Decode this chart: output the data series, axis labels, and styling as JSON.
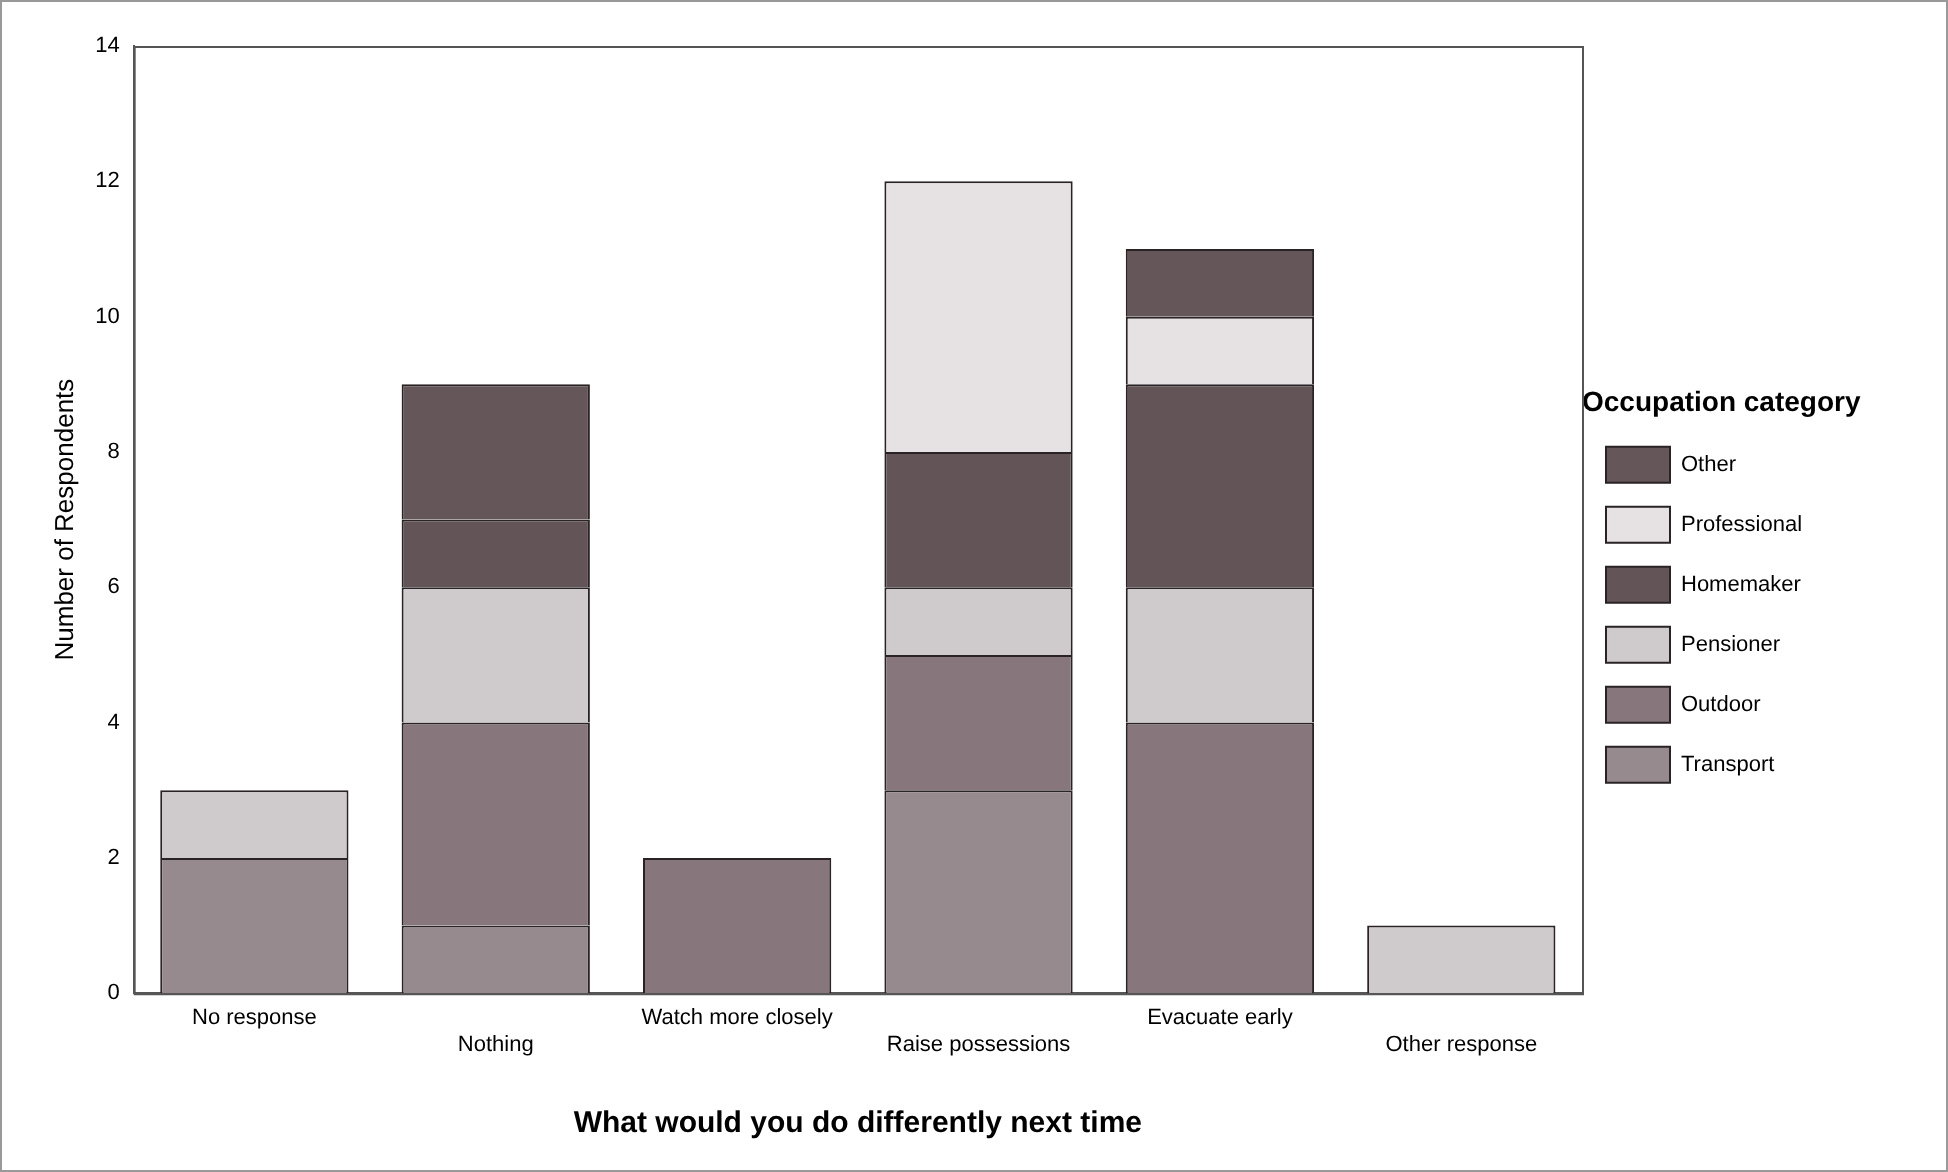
{
  "chart_data": {
    "type": "bar",
    "stacked": true,
    "xlabel": "What would you do differently next time",
    "ylabel": "Number of Respondents",
    "legend_title": "Occupation category",
    "legend": "right",
    "categories": [
      "No response",
      "Nothing",
      "Watch more closely",
      "Raise possessions",
      "Evacuate early",
      "Other response"
    ],
    "ylim": [
      0,
      14
    ],
    "yticks": [
      0,
      2,
      4,
      6,
      8,
      10,
      12,
      14
    ],
    "grid": false,
    "series": [
      {
        "name": "Transport",
        "color": "#978a8f",
        "values": [
          2,
          1,
          0,
          3,
          0,
          0
        ]
      },
      {
        "name": "Outdoor",
        "color": "#87777d",
        "values": [
          0,
          3,
          2,
          2,
          4,
          0
        ]
      },
      {
        "name": "Pensioner",
        "color": "#cfcacc",
        "values": [
          1,
          2,
          0,
          1,
          2,
          1
        ]
      },
      {
        "name": "Homemaker",
        "color": "#625457",
        "values": [
          0,
          1,
          0,
          2,
          3,
          0
        ]
      },
      {
        "name": "Professional",
        "color": "#e6e1e3",
        "values": [
          0,
          0,
          0,
          4,
          1,
          0
        ]
      },
      {
        "name": "Other",
        "color": "#645659",
        "values": [
          0,
          2,
          0,
          0,
          1,
          0
        ]
      }
    ]
  }
}
